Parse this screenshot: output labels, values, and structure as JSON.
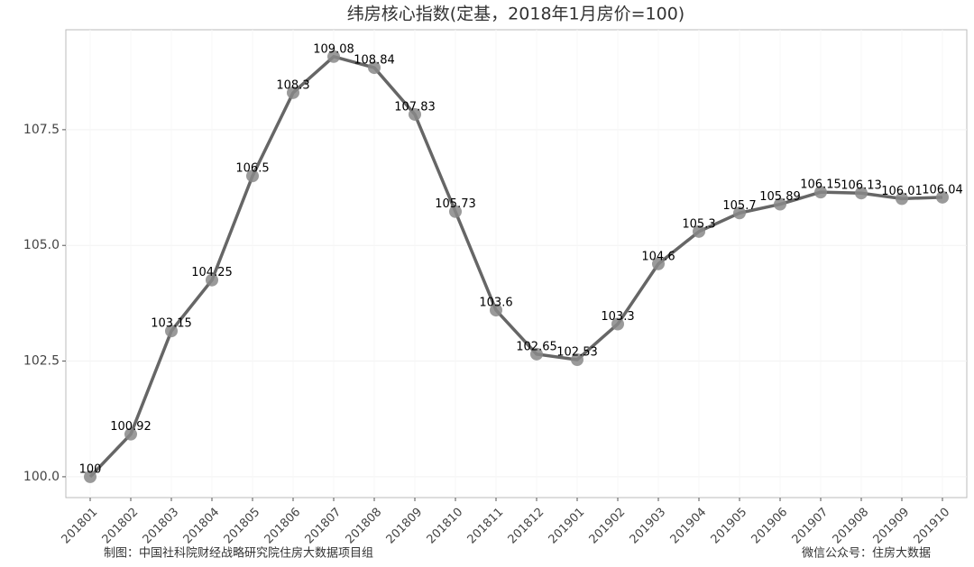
{
  "chart_data": {
    "type": "line",
    "title": "纬房核心指数(定基，2018年1月房价=100)",
    "categories": [
      "201801",
      "201802",
      "201803",
      "201804",
      "201805",
      "201806",
      "201807",
      "201808",
      "201809",
      "201810",
      "201811",
      "201812",
      "201901",
      "201902",
      "201903",
      "201904",
      "201905",
      "201906",
      "201907",
      "201908",
      "201909",
      "201910"
    ],
    "series": [
      {
        "name": "纬房核心指数",
        "color": "#666666",
        "values": [
          100,
          100.92,
          103.15,
          104.25,
          106.5,
          108.3,
          109.08,
          108.84,
          107.83,
          105.73,
          103.6,
          102.65,
          102.53,
          103.3,
          104.6,
          105.3,
          105.7,
          105.89,
          106.15,
          106.13,
          106.01,
          106.04
        ]
      }
    ],
    "ylim": [
      99.55,
      109.66
    ],
    "yticks": [
      {
        "value": 100,
        "label": "100.0"
      },
      102.5,
      {
        "value": 105,
        "label": "105.0"
      },
      107.5
    ],
    "grid": true,
    "caption_left": "制图：中国社科院财经战略研究院住房大数据项目组",
    "caption_right": "微信公众号：住房大数据"
  }
}
